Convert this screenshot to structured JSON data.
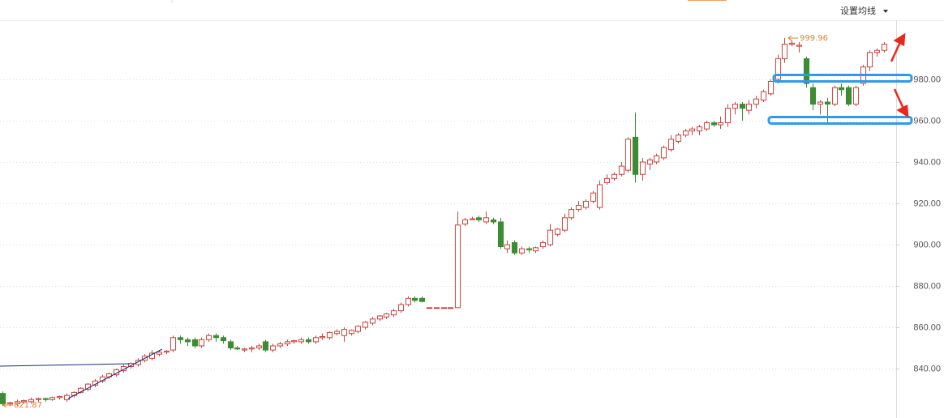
{
  "chart_data": {
    "type": "candlestick",
    "ma_button": "设置均线",
    "up_color": "#c8453f",
    "down_color": "#3c8c34",
    "ylim": [
      816.1,
      1008.6
    ],
    "yticks": [
      {
        "value": 840,
        "label": "840.00"
      },
      {
        "value": 860,
        "label": "860.00"
      },
      {
        "value": 880,
        "label": "880.00"
      },
      {
        "value": 900,
        "label": "900.00"
      },
      {
        "value": 920,
        "label": "920.00"
      },
      {
        "value": 940,
        "label": "940.00"
      },
      {
        "value": 960,
        "label": "960.00"
      },
      {
        "value": 980,
        "label": "980.00"
      }
    ],
    "grid": true,
    "extremes": {
      "high": 999.96,
      "low": 821.87
    },
    "open": [
      828,
      823,
      823,
      824,
      824,
      825,
      825.5,
      825,
      826,
      825,
      827,
      828.5,
      830,
      832,
      834,
      836,
      837,
      839,
      841,
      842,
      844,
      845,
      847,
      848,
      849,
      855,
      854,
      854,
      851,
      854,
      856,
      855,
      853,
      850,
      849,
      849.5,
      850,
      853,
      849,
      851,
      852,
      853,
      853,
      854,
      853,
      855,
      855,
      857,
      856,
      857,
      858,
      860,
      862,
      864,
      865,
      866,
      868,
      871,
      874,
      874,
      869.5,
      869.5,
      869.5,
      869.5,
      869.5,
      910,
      912.5,
      913,
      911,
      912,
      911,
      898,
      901,
      896,
      898,
      897,
      899,
      900,
      905,
      907,
      913,
      917,
      918,
      921,
      918,
      930,
      932,
      934,
      936,
      952,
      934,
      939,
      940,
      942,
      946,
      950,
      953,
      955,
      955,
      956,
      959,
      958,
      959,
      966,
      968,
      965,
      968,
      970,
      973,
      980,
      990,
      997,
      996,
      990,
      976,
      968,
      969,
      968,
      976,
      976,
      968,
      978,
      986,
      993,
      994
    ],
    "high": [
      829,
      824,
      825,
      825,
      826,
      826,
      826,
      826.5,
      827,
      828,
      829,
      831,
      833,
      835,
      837,
      838,
      840,
      842,
      843,
      845,
      847,
      849,
      849,
      849,
      856,
      856,
      855,
      855,
      855,
      857,
      857,
      856,
      854,
      851,
      850,
      851,
      852,
      854,
      852,
      853,
      854,
      854,
      855,
      855,
      856,
      857,
      858,
      859,
      860,
      859,
      861,
      863,
      865,
      866,
      867,
      869,
      872,
      875,
      875,
      875,
      869.5,
      869.5,
      869.5,
      869.5,
      916,
      913,
      913.5,
      914,
      916,
      913,
      913,
      902,
      902,
      899,
      899,
      899,
      902,
      910,
      908,
      915,
      918,
      921,
      922,
      926,
      931,
      934,
      935,
      940,
      952,
      964,
      942,
      942,
      944,
      948,
      953,
      954,
      956,
      957,
      958,
      960,
      960,
      962,
      968,
      969,
      969,
      970,
      972,
      975,
      980,
      992,
      999.96,
      999,
      998,
      991,
      978,
      970,
      971,
      977,
      978,
      977,
      977,
      987,
      994,
      995,
      998
    ],
    "low": [
      821.87,
      822,
      822,
      823,
      823,
      824,
      824,
      824.5,
      825,
      824,
      826,
      828,
      829,
      831,
      833,
      835,
      836,
      838,
      840,
      841,
      843,
      844,
      846,
      847,
      848,
      852,
      851,
      850,
      850,
      853,
      853,
      852,
      849,
      849,
      848,
      848,
      849,
      848,
      848,
      850,
      851,
      852,
      852,
      852,
      852,
      854,
      854,
      856,
      853,
      856,
      857,
      859,
      861,
      863,
      864,
      865,
      867,
      870,
      872,
      872,
      869.5,
      869.5,
      869.5,
      869.5,
      869.5,
      909,
      912,
      911,
      910,
      910,
      898,
      896,
      895,
      895,
      896,
      896,
      898,
      899,
      904,
      906,
      912,
      916,
      917,
      920,
      917,
      929,
      931,
      933,
      935,
      930,
      931,
      936,
      939,
      941,
      945,
      949,
      952,
      953,
      953,
      955,
      957,
      956,
      957,
      963,
      960,
      963,
      966,
      969,
      972,
      978,
      988,
      996,
      993,
      976,
      965,
      963,
      959,
      967,
      972,
      967,
      967,
      977,
      984,
      991,
      993
    ],
    "close": [
      823,
      823.5,
      824,
      824.5,
      825,
      825.5,
      825,
      826,
      826.5,
      827,
      828.5,
      830.5,
      832.5,
      834,
      836,
      837.5,
      839.5,
      841,
      842.5,
      844,
      846,
      847.5,
      848,
      848.5,
      855,
      854,
      853,
      851,
      854,
      856,
      855,
      853.5,
      850,
      849.5,
      849.5,
      850,
      851,
      849,
      851,
      852,
      853,
      853.5,
      854,
      853,
      855,
      855.5,
      857.5,
      858,
      859,
      858.5,
      860.5,
      862.5,
      864,
      865.5,
      866.5,
      868,
      871,
      874,
      873,
      872.5,
      869.5,
      869.5,
      869.5,
      869.5,
      909.5,
      912,
      912.5,
      912,
      913,
      911,
      899,
      900,
      896,
      898,
      897.5,
      898.5,
      901,
      907,
      907.5,
      913,
      917,
      919,
      921,
      925,
      929,
      932,
      934,
      938,
      951,
      934,
      940,
      941,
      943,
      947,
      951,
      953,
      955,
      956,
      957,
      959,
      958,
      959,
      966,
      968,
      966,
      968,
      970.5,
      974,
      979,
      990,
      997,
      997.5,
      996.5,
      978,
      968,
      969,
      968,
      976,
      975,
      968,
      976,
      986,
      993,
      994,
      997
    ]
  }
}
